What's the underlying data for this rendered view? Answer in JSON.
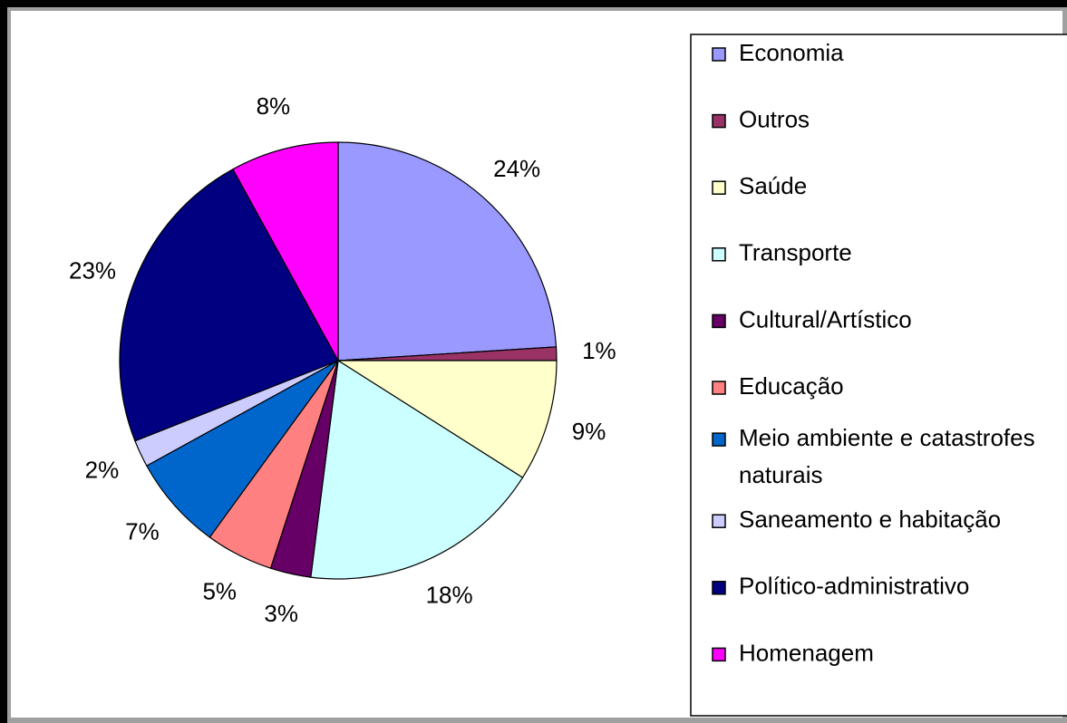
{
  "chart_data": {
    "type": "pie",
    "categories": [
      "Economia",
      "Outros",
      "Saúde",
      "Transporte",
      "Cultural/Artístico",
      "Educação",
      "Meio ambiente e catastrofes naturais",
      "Saneamento e habitação",
      "Político-administrativo",
      "Homenagem"
    ],
    "values": [
      24,
      1,
      9,
      18,
      3,
      5,
      7,
      2,
      23,
      8
    ],
    "value_labels": [
      "24%",
      "1%",
      "9%",
      "18%",
      "3%",
      "5%",
      "7%",
      "2%",
      "23%",
      "8%"
    ],
    "colors": [
      "#9999ff",
      "#993366",
      "#ffffcc",
      "#ccffff",
      "#660066",
      "#ff8080",
      "#0066cc",
      "#ccccff",
      "#000080",
      "#ff00ff"
    ],
    "legend": "right"
  }
}
